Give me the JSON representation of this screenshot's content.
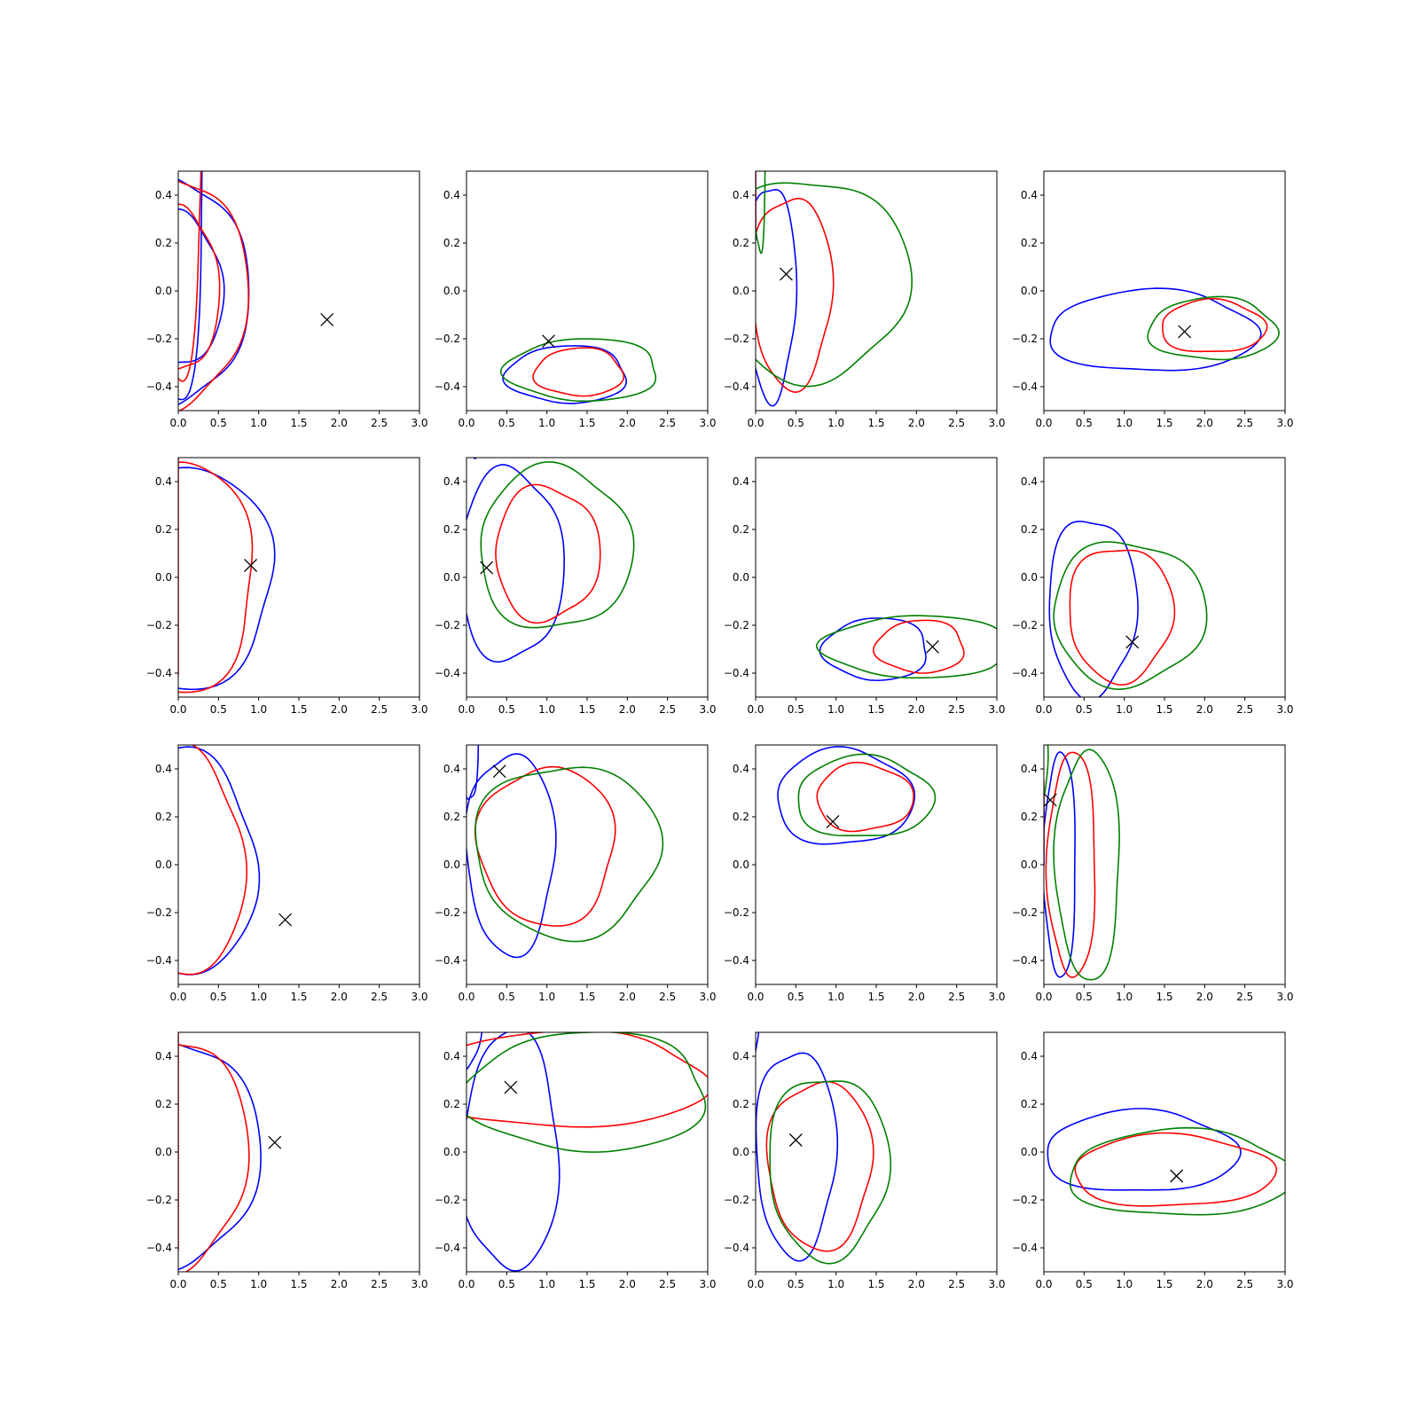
{
  "figure": {
    "rows": 4,
    "cols": 4
  },
  "colors": {
    "blue": "#0000ff",
    "red": "#ff0000",
    "green": "#008000",
    "marker": "#000000"
  },
  "axes_common": {
    "xlim": [
      0,
      3.0
    ],
    "ylim": [
      -0.5,
      0.5
    ],
    "xticks": [
      0,
      0.5,
      1.0,
      1.5,
      2.0,
      2.5,
      3.0
    ],
    "xtick_labels": [
      "0.0",
      "0.5",
      "1.0",
      "1.5",
      "2.0",
      "2.5",
      "3.0"
    ],
    "yticks": [
      -0.4,
      -0.2,
      0.0,
      0.2,
      0.4
    ],
    "ytick_labels": [
      "−0.4",
      "−0.2",
      "0.0",
      "0.2",
      "0.4"
    ]
  },
  "chart_data": [
    {
      "type": "contour",
      "panel": [
        1,
        1
      ],
      "marker": [
        1.85,
        -0.12
      ],
      "series": [
        {
          "color": "blue",
          "contours": [
            [
              0.0,
              0.0,
              0.86,
              0.47,
              1.76,
              -0.17,
              0.0,
              0.0,
              0.88,
              0.48
            ],
            [
              0.0,
              0.0,
              0.55,
              0.32,
              1.08,
              0.0,
              0.45,
              -0.32,
              0.93,
              0.64
            ]
          ]
        },
        {
          "color": "red",
          "contours": [
            [
              0.0,
              0.0,
              0.85,
              0.48,
              1.65,
              -0.1,
              0.02,
              0.0,
              0.85,
              0.48
            ],
            [
              0.05,
              0.0,
              0.45,
              0.34,
              1.05,
              0.0,
              0.52,
              -0.3,
              0.9,
              0.64
            ]
          ]
        }
      ]
    },
    {
      "type": "contour",
      "panel": [
        1,
        2
      ],
      "marker": [
        1.02,
        -0.21
      ],
      "series": [
        {
          "color": "blue",
          "contours": [
            [
              1.25,
              -0.35,
              0.75,
              0.12,
              0.8,
              -0.35,
              1.3,
              -0.34,
              0.35,
              0.06
            ]
          ]
        },
        {
          "color": "red",
          "contours": [
            [
              1.4,
              -0.34,
              0.55,
              0.1,
              0.65,
              -0.34,
              1.4,
              -0.33,
              0.25,
              0.06
            ]
          ]
        },
        {
          "color": "green",
          "contours": [
            [
              1.45,
              -0.33,
              0.95,
              0.13,
              1.0,
              -0.34,
              1.45,
              -0.33,
              0.45,
              0.08
            ]
          ]
        }
      ]
    },
    {
      "type": "contour",
      "panel": [
        1,
        3
      ],
      "marker": [
        0.38,
        0.07
      ],
      "series": [
        {
          "color": "blue",
          "contours": [
            [
              0.2,
              0.0,
              0.3,
              0.45,
              0.75,
              0.0,
              0.35,
              0.0,
              0.15,
              0.3
            ]
          ]
        },
        {
          "color": "red",
          "contours": [
            [
              0.45,
              0.0,
              0.5,
              0.4,
              0.82,
              0.0,
              0.5,
              0.0,
              0.3,
              0.3
            ]
          ]
        },
        {
          "color": "green",
          "contours": [
            [
              0.7,
              0.05,
              1.2,
              0.42,
              0.7,
              0.05,
              0.55,
              0.07,
              0.4,
              0.22
            ]
          ]
        }
      ]
    },
    {
      "type": "contour",
      "panel": [
        1,
        4
      ],
      "marker": [
        1.75,
        -0.17
      ],
      "series": [
        {
          "color": "blue",
          "contours": [
            [
              1.35,
              -0.17,
              1.3,
              0.17,
              0.95,
              -0.02,
              2.05,
              -0.15,
              0.35,
              0.07
            ]
          ]
        },
        {
          "color": "red",
          "contours": [
            [
              2.1,
              -0.15,
              0.65,
              0.11,
              0.7,
              -0.15,
              2.15,
              -0.14,
              0.3,
              0.06
            ]
          ]
        },
        {
          "color": "green",
          "contours": [
            [
              2.1,
              -0.16,
              0.8,
              0.13,
              0.9,
              -0.15,
              2.15,
              -0.15,
              0.45,
              0.09
            ]
          ]
        }
      ]
    },
    {
      "type": "contour",
      "panel": [
        2,
        1
      ],
      "marker": [
        0.9,
        0.05
      ],
      "series": [
        {
          "color": "blue",
          "contours": [
            [
              0.0,
              0.0,
              1.2,
              0.46,
              2.4,
              -0.1,
              0.02,
              0.0,
              0.68,
              0.3
            ]
          ]
        },
        {
          "color": "red",
          "contours": [
            [
              0.0,
              0.0,
              0.95,
              0.48,
              1.85,
              0.0,
              0.05,
              0.0,
              0.45,
              0.33
            ]
          ]
        }
      ]
    },
    {
      "type": "contour",
      "panel": [
        2,
        2
      ],
      "marker": [
        0.25,
        0.04
      ],
      "series": [
        {
          "color": "blue",
          "contours": [
            [
              0.55,
              0.05,
              0.65,
              0.4,
              0.8,
              0.08,
              0.85,
              0.1,
              0.35,
              0.2
            ]
          ]
        },
        {
          "color": "red",
          "contours": [
            [
              1.0,
              0.1,
              0.65,
              0.28,
              0.55,
              0.0,
              0.95,
              0.09,
              0.4,
              0.2
            ]
          ]
        },
        {
          "color": "green",
          "contours": [
            [
              1.1,
              0.12,
              0.95,
              0.34,
              0.8,
              0.0,
              1.05,
              0.11,
              0.5,
              0.22
            ]
          ]
        }
      ]
    },
    {
      "type": "contour",
      "panel": [
        2,
        3
      ],
      "marker": [
        2.2,
        -0.29
      ],
      "series": [
        {
          "color": "blue",
          "contours": [
            [
              1.5,
              -0.3,
              0.65,
              0.13,
              0.8,
              -0.3,
              1.85,
              -0.3,
              0.35,
              0.07
            ]
          ]
        },
        {
          "color": "red",
          "contours": [
            [
              2.05,
              -0.29,
              0.55,
              0.11,
              0.55,
              -0.29,
              2.1,
              -0.29,
              0.3,
              0.06
            ]
          ]
        },
        {
          "color": "green",
          "contours": [
            [
              2.0,
              -0.29,
              1.15,
              0.13,
              1.0,
              -0.29,
              2.05,
              -0.29,
              0.55,
              0.08
            ]
          ]
        }
      ]
    },
    {
      "type": "contour",
      "panel": [
        2,
        4
      ],
      "marker": [
        1.1,
        -0.27
      ],
      "series": [
        {
          "color": "blue",
          "contours": [
            [
              0.6,
              -0.12,
              0.55,
              0.37,
              0.8,
              -0.12,
              0.9,
              -0.15,
              0.33,
              0.22
            ]
          ]
        },
        {
          "color": "red",
          "contours": [
            [
              0.95,
              -0.15,
              0.65,
              0.28,
              0.7,
              -0.15,
              0.95,
              -0.14,
              0.35,
              0.18
            ]
          ]
        },
        {
          "color": "green",
          "contours": [
            [
              1.05,
              -0.15,
              0.95,
              0.3,
              0.8,
              -0.15,
              2.7,
              0.18,
              0.45,
              0.12
            ]
          ]
        }
      ]
    },
    {
      "type": "contour",
      "panel": [
        3,
        1
      ],
      "marker": [
        1.33,
        -0.23
      ],
      "series": [
        {
          "color": "blue",
          "contours": [
            [
              0.0,
              0.0,
              0.98,
              0.47,
              1.95,
              -0.05,
              0.02,
              0.0,
              0.66,
              0.32
            ]
          ]
        },
        {
          "color": "red",
          "contours": [
            [
              0.0,
              0.0,
              0.82,
              0.48,
              1.6,
              -0.07,
              0.05,
              0.0,
              0.45,
              0.32
            ]
          ]
        }
      ]
    },
    {
      "type": "contour",
      "panel": [
        3,
        2
      ],
      "marker": [
        0.41,
        0.39
      ],
      "series": [
        {
          "color": "blue",
          "contours": [
            [
              0.55,
              0.05,
              0.55,
              0.42,
              0.8,
              0.05,
              0.6,
              0.1,
              0.35,
              0.25
            ]
          ]
        },
        {
          "color": "red",
          "contours": [
            [
              1.0,
              0.08,
              0.85,
              0.33,
              0.72,
              0.05,
              2.2,
              0.23,
              0.18,
              0.05
            ]
          ]
        },
        {
          "color": "green",
          "contours": [
            [
              1.25,
              0.06,
              1.15,
              0.36,
              0.95,
              0.06,
              1.1,
              0.08,
              0.35,
              0.2
            ]
          ]
        }
      ]
    },
    {
      "type": "contour",
      "panel": [
        3,
        3
      ],
      "marker": [
        0.96,
        0.18
      ],
      "series": [
        {
          "color": "blue",
          "contours": [
            [
              1.1,
              0.28,
              0.85,
              0.2,
              0.63,
              0.28,
              1.4,
              0.3,
              0.5,
              0.12
            ]
          ]
        },
        {
          "color": "red",
          "contours": [
            [
              1.35,
              0.28,
              0.6,
              0.14,
              0.65,
              0.28,
              1.35,
              0.28,
              0.35,
              0.1
            ]
          ]
        },
        {
          "color": "green",
          "contours": [
            [
              1.35,
              0.28,
              0.85,
              0.17,
              1.0,
              0.28,
              1.35,
              0.28,
              0.35,
              0.11
            ]
          ]
        }
      ]
    },
    {
      "type": "contour",
      "panel": [
        3,
        4
      ],
      "marker": [
        0.08,
        0.27
      ],
      "series": [
        {
          "color": "blue",
          "contours": [
            [
              0.2,
              0.0,
              0.2,
              0.47,
              0.55,
              0.0,
              0.15,
              0.0,
              0.15,
              0.33
            ]
          ]
        },
        {
          "color": "red",
          "contours": [
            [
              0.35,
              0.0,
              0.3,
              0.47,
              0.7,
              0.0,
              0.2,
              0.0,
              0.15,
              0.4
            ]
          ]
        },
        {
          "color": "green",
          "contours": [
            [
              0.55,
              0.0,
              0.4,
              0.48,
              1.05,
              0.0,
              0.45,
              0.05,
              0.15,
              0.3
            ]
          ]
        }
      ]
    },
    {
      "type": "contour",
      "panel": [
        4,
        1
      ],
      "marker": [
        1.2,
        0.04
      ],
      "series": [
        {
          "color": "blue",
          "contours": [
            [
              0.0,
              0.0,
              1.0,
              0.47,
              2.0,
              -0.05,
              0.02,
              0.0,
              0.65,
              0.33
            ]
          ]
        },
        {
          "color": "red",
          "contours": [
            [
              0.0,
              0.0,
              0.85,
              0.48,
              1.8,
              0.0,
              0.05,
              0.0,
              0.5,
              0.32
            ]
          ]
        }
      ]
    },
    {
      "type": "contour",
      "panel": [
        4,
        2
      ],
      "marker": [
        0.55,
        0.27
      ],
      "series": [
        {
          "color": "blue",
          "contours": [
            [
              0.55,
              0.0,
              0.6,
              0.5,
              1.0,
              0.0,
              0.6,
              0.2,
              0.25,
              0.4
            ]
          ]
        },
        {
          "color": "red",
          "contours": [
            [
              1.2,
              0.3,
              1.8,
              0.2,
              0.7,
              0.25,
              2.1,
              0.3,
              0.6,
              0.1
            ]
          ]
        },
        {
          "color": "green",
          "contours": [
            [
              1.5,
              0.25,
              1.5,
              0.25,
              0.9,
              0.25,
              2.3,
              0.3,
              0.9,
              0.15
            ]
          ]
        }
      ]
    },
    {
      "type": "contour",
      "panel": [
        4,
        3
      ],
      "marker": [
        0.5,
        0.05
      ],
      "series": [
        {
          "color": "blue",
          "contours": [
            [
              0.5,
              0.0,
              0.5,
              0.43,
              0.75,
              -0.05,
              0.62,
              -0.1,
              0.25,
              0.25
            ]
          ]
        },
        {
          "color": "red",
          "contours": [
            [
              0.8,
              -0.05,
              0.65,
              0.35,
              0.75,
              -0.05,
              0.7,
              -0.07,
              0.3,
              0.22
            ]
          ]
        },
        {
          "color": "green",
          "contours": [
            [
              0.9,
              -0.06,
              0.75,
              0.38,
              0.95,
              -0.06,
              0.8,
              -0.08,
              0.35,
              0.25
            ]
          ]
        }
      ]
    },
    {
      "type": "contour",
      "panel": [
        4,
        4
      ],
      "marker": [
        1.65,
        -0.1
      ],
      "series": [
        {
          "color": "blue",
          "contours": [
            [
              1.2,
              0.0,
              1.2,
              0.17,
              0.8,
              -0.02,
              1.3,
              -0.04,
              0.45,
              0.12
            ]
          ]
        },
        {
          "color": "red",
          "contours": [
            [
              1.6,
              -0.08,
              1.25,
              0.15,
              0.85,
              -0.08,
              1.6,
              -0.05,
              0.35,
              0.09
            ]
          ]
        },
        {
          "color": "green",
          "contours": [
            [
              1.7,
              -0.09,
              1.4,
              0.18,
              1.0,
              -0.09,
              1.7,
              -0.05,
              0.65,
              0.12
            ]
          ]
        }
      ]
    }
  ]
}
